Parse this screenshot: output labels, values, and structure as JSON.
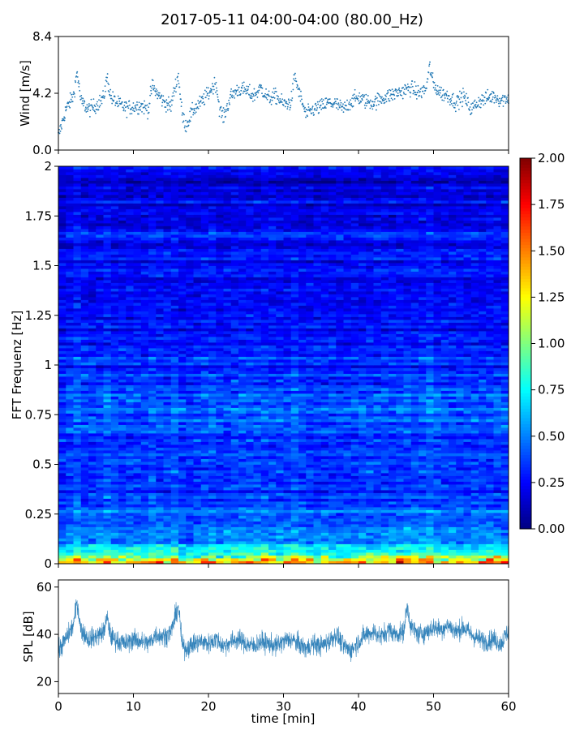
{
  "title": "2017-05-11 04:00-04:00 (80.00_Hz)",
  "chart_data": [
    {
      "type": "scatter",
      "panel": "wind",
      "ylabel": "Wind [m/s]",
      "xlim": [
        0,
        60
      ],
      "ylim": [
        0,
        8.4
      ],
      "yticks": [
        "0.0",
        "4.2",
        "8.4"
      ],
      "color": "#1f77b4",
      "segments": [
        {
          "x": 0,
          "y": 1.0
        },
        {
          "x": 1,
          "y": 3.0
        },
        {
          "x": 2,
          "y": 4.0
        },
        {
          "x": 2.5,
          "y": 5.8
        },
        {
          "x": 3,
          "y": 3.6
        },
        {
          "x": 4,
          "y": 3.0
        },
        {
          "x": 5,
          "y": 3.3
        },
        {
          "x": 6,
          "y": 3.8
        },
        {
          "x": 6.5,
          "y": 5.4
        },
        {
          "x": 7,
          "y": 3.9
        },
        {
          "x": 8,
          "y": 3.4
        },
        {
          "x": 9,
          "y": 3.1
        },
        {
          "x": 10,
          "y": 3.2
        },
        {
          "x": 11,
          "y": 3.3
        },
        {
          "x": 12,
          "y": 3.0
        },
        {
          "x": 12.5,
          "y": 4.8
        },
        {
          "x": 13,
          "y": 4.3
        },
        {
          "x": 14,
          "y": 3.6
        },
        {
          "x": 15,
          "y": 3.2
        },
        {
          "x": 15.5,
          "y": 4.6
        },
        {
          "x": 16,
          "y": 5.5
        },
        {
          "x": 16.5,
          "y": 2.6
        },
        {
          "x": 17,
          "y": 1.8
        },
        {
          "x": 18,
          "y": 3.0
        },
        {
          "x": 19,
          "y": 3.5
        },
        {
          "x": 20,
          "y": 4.2
        },
        {
          "x": 21,
          "y": 5.0
        },
        {
          "x": 21.5,
          "y": 3.0
        },
        {
          "x": 22,
          "y": 2.4
        },
        {
          "x": 23,
          "y": 4.0
        },
        {
          "x": 24,
          "y": 4.5
        },
        {
          "x": 25,
          "y": 4.4
        },
        {
          "x": 26,
          "y": 4.0
        },
        {
          "x": 27,
          "y": 4.6
        },
        {
          "x": 28,
          "y": 3.8
        },
        {
          "x": 29,
          "y": 4.0
        },
        {
          "x": 30,
          "y": 3.4
        },
        {
          "x": 31,
          "y": 3.5
        },
        {
          "x": 31.5,
          "y": 5.5
        },
        {
          "x": 32,
          "y": 4.4
        },
        {
          "x": 33,
          "y": 2.6
        },
        {
          "x": 34,
          "y": 3.0
        },
        {
          "x": 35,
          "y": 3.2
        },
        {
          "x": 36,
          "y": 3.5
        },
        {
          "x": 37,
          "y": 3.4
        },
        {
          "x": 38,
          "y": 3.0
        },
        {
          "x": 39,
          "y": 3.6
        },
        {
          "x": 40,
          "y": 3.9
        },
        {
          "x": 41,
          "y": 3.6
        },
        {
          "x": 42,
          "y": 3.5
        },
        {
          "x": 43,
          "y": 3.8
        },
        {
          "x": 44,
          "y": 4.0
        },
        {
          "x": 45,
          "y": 4.2
        },
        {
          "x": 46,
          "y": 4.4
        },
        {
          "x": 47,
          "y": 4.6
        },
        {
          "x": 48,
          "y": 4.2
        },
        {
          "x": 49,
          "y": 4.5
        },
        {
          "x": 49.5,
          "y": 6.2
        },
        {
          "x": 50,
          "y": 4.8
        },
        {
          "x": 51,
          "y": 4.2
        },
        {
          "x": 52,
          "y": 4.0
        },
        {
          "x": 53,
          "y": 3.5
        },
        {
          "x": 54,
          "y": 4.0
        },
        {
          "x": 55,
          "y": 3.0
        },
        {
          "x": 56,
          "y": 3.6
        },
        {
          "x": 57,
          "y": 3.8
        },
        {
          "x": 58,
          "y": 4.0
        },
        {
          "x": 59,
          "y": 3.7
        },
        {
          "x": 60,
          "y": 3.9
        }
      ]
    },
    {
      "type": "heatmap",
      "panel": "spectrogram",
      "ylabel": "FFT Frequenz [Hz]",
      "xlim": [
        0,
        60
      ],
      "ylim": [
        0,
        2
      ],
      "yticks": [
        "0",
        "0.25",
        "0.5",
        "0.75",
        "1",
        "1.25",
        "1.5",
        "1.75",
        "2"
      ],
      "colorscale": "jet",
      "clim": [
        0,
        2
      ],
      "colorbar_ticks": [
        "0.00",
        "0.25",
        "0.50",
        "0.75",
        "1.00",
        "1.25",
        "1.50",
        "1.75",
        "2.00"
      ],
      "frequency_profile": [
        {
          "f": 0.0,
          "v": 1.6
        },
        {
          "f": 0.03,
          "v": 1.1
        },
        {
          "f": 0.06,
          "v": 0.8
        },
        {
          "f": 0.12,
          "v": 0.55
        },
        {
          "f": 0.25,
          "v": 0.4
        },
        {
          "f": 0.5,
          "v": 0.35
        },
        {
          "f": 0.8,
          "v": 0.45
        },
        {
          "f": 1.0,
          "v": 0.3
        },
        {
          "f": 1.5,
          "v": 0.25
        },
        {
          "f": 2.0,
          "v": 0.2
        }
      ]
    },
    {
      "type": "line",
      "panel": "spl",
      "ylabel": "SPL [dB]",
      "xlabel": "time [min]",
      "xlim": [
        0,
        60
      ],
      "ylim": [
        15,
        63
      ],
      "yticks": [
        "20",
        "40",
        "60"
      ],
      "xticks": [
        "0",
        "10",
        "20",
        "30",
        "40",
        "50",
        "60"
      ],
      "color": "#1f77b4",
      "segments": [
        {
          "x": 0,
          "y": 33
        },
        {
          "x": 1,
          "y": 38
        },
        {
          "x": 2,
          "y": 44
        },
        {
          "x": 2.5,
          "y": 54
        },
        {
          "x": 3,
          "y": 42
        },
        {
          "x": 4,
          "y": 38
        },
        {
          "x": 5,
          "y": 39
        },
        {
          "x": 6,
          "y": 41
        },
        {
          "x": 6.5,
          "y": 47
        },
        {
          "x": 7,
          "y": 39
        },
        {
          "x": 8,
          "y": 37
        },
        {
          "x": 9,
          "y": 36
        },
        {
          "x": 10,
          "y": 38
        },
        {
          "x": 11,
          "y": 37
        },
        {
          "x": 12,
          "y": 36
        },
        {
          "x": 13,
          "y": 40
        },
        {
          "x": 14,
          "y": 39
        },
        {
          "x": 15,
          "y": 41
        },
        {
          "x": 16,
          "y": 52
        },
        {
          "x": 16.5,
          "y": 35
        },
        {
          "x": 17,
          "y": 34
        },
        {
          "x": 18,
          "y": 36
        },
        {
          "x": 19,
          "y": 37
        },
        {
          "x": 20,
          "y": 36
        },
        {
          "x": 21,
          "y": 38
        },
        {
          "x": 22,
          "y": 35
        },
        {
          "x": 23,
          "y": 37
        },
        {
          "x": 24,
          "y": 38
        },
        {
          "x": 25,
          "y": 36
        },
        {
          "x": 26,
          "y": 35
        },
        {
          "x": 27,
          "y": 37
        },
        {
          "x": 28,
          "y": 36
        },
        {
          "x": 29,
          "y": 35
        },
        {
          "x": 30,
          "y": 37
        },
        {
          "x": 31,
          "y": 38
        },
        {
          "x": 32,
          "y": 36
        },
        {
          "x": 33,
          "y": 34
        },
        {
          "x": 34,
          "y": 36
        },
        {
          "x": 35,
          "y": 35
        },
        {
          "x": 36,
          "y": 37
        },
        {
          "x": 37,
          "y": 40
        },
        {
          "x": 38,
          "y": 35
        },
        {
          "x": 39,
          "y": 33
        },
        {
          "x": 40,
          "y": 37
        },
        {
          "x": 41,
          "y": 40
        },
        {
          "x": 42,
          "y": 41
        },
        {
          "x": 43,
          "y": 39
        },
        {
          "x": 44,
          "y": 42
        },
        {
          "x": 45,
          "y": 40
        },
        {
          "x": 46,
          "y": 41
        },
        {
          "x": 46.5,
          "y": 52
        },
        {
          "x": 47,
          "y": 43
        },
        {
          "x": 48,
          "y": 40
        },
        {
          "x": 49,
          "y": 41
        },
        {
          "x": 50,
          "y": 43
        },
        {
          "x": 51,
          "y": 42
        },
        {
          "x": 52,
          "y": 44
        },
        {
          "x": 53,
          "y": 41
        },
        {
          "x": 54,
          "y": 43
        },
        {
          "x": 55,
          "y": 40
        },
        {
          "x": 56,
          "y": 38
        },
        {
          "x": 57,
          "y": 37
        },
        {
          "x": 58,
          "y": 38
        },
        {
          "x": 59,
          "y": 36
        },
        {
          "x": 60,
          "y": 42
        }
      ]
    }
  ]
}
